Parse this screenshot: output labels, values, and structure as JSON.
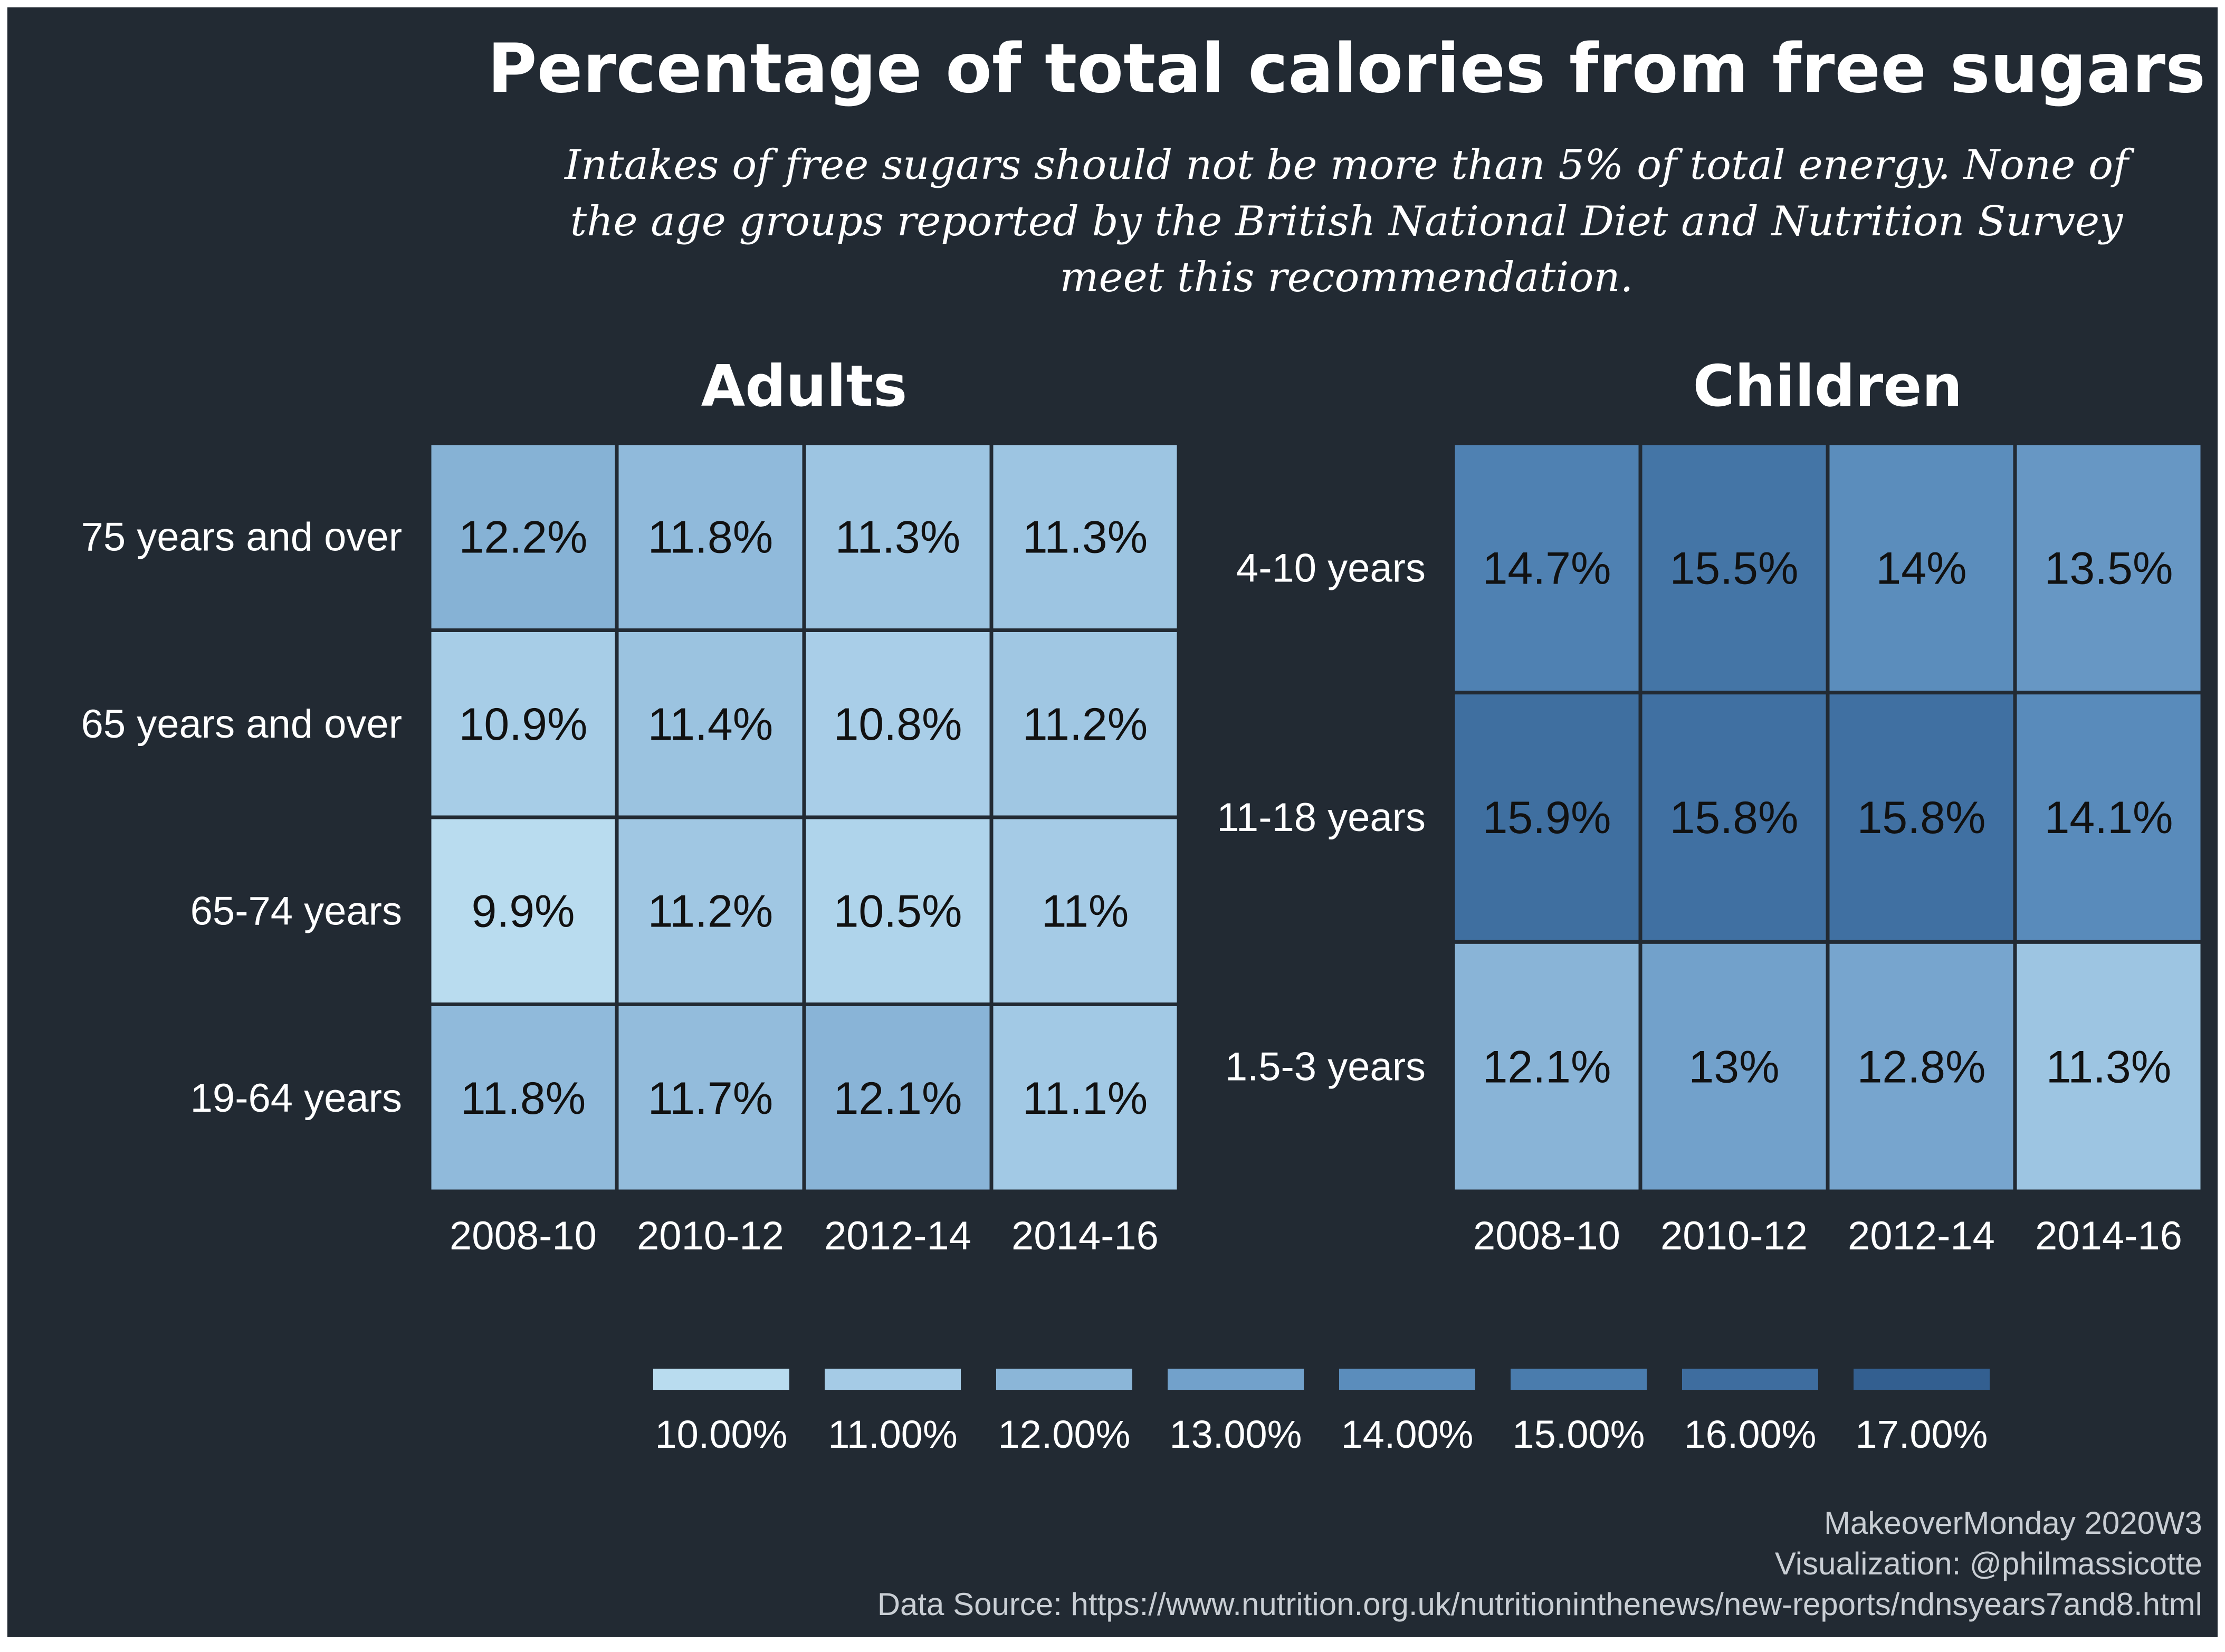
{
  "title": "Percentage of total calories from free sugars",
  "subtitle": [
    "Intakes of free sugars should not be more than 5% of total energy. None of",
    "the age groups reported by the British National Diet and Nutrition Survey",
    "meet this recommendation."
  ],
  "chart_data": [
    {
      "type": "heatmap",
      "title": "Adults",
      "x": [
        "2008-10",
        "2010-12",
        "2012-14",
        "2014-16"
      ],
      "y": [
        "75 years and over",
        "65 years and over",
        "65-74 years",
        "19-64 years"
      ],
      "values": [
        [
          12.2,
          11.8,
          11.3,
          11.3
        ],
        [
          10.9,
          11.4,
          10.8,
          11.2
        ],
        [
          9.9,
          11.2,
          10.5,
          11.0
        ],
        [
          11.8,
          11.7,
          12.1,
          11.1
        ]
      ],
      "labels": [
        [
          "12.2%",
          "11.8%",
          "11.3%",
          "11.3%"
        ],
        [
          "10.9%",
          "11.4%",
          "10.8%",
          "11.2%"
        ],
        [
          "9.9%",
          "11.2%",
          "10.5%",
          "11%"
        ],
        [
          "11.8%",
          "11.7%",
          "12.1%",
          "11.1%"
        ]
      ]
    },
    {
      "type": "heatmap",
      "title": "Children",
      "x": [
        "2008-10",
        "2010-12",
        "2012-14",
        "2014-16"
      ],
      "y": [
        "4-10 years",
        "11-18 years",
        "1.5-3 years"
      ],
      "values": [
        [
          14.7,
          15.5,
          14.0,
          13.5
        ],
        [
          15.9,
          15.8,
          15.8,
          14.1
        ],
        [
          12.1,
          13.0,
          12.8,
          11.3
        ]
      ],
      "labels": [
        [
          "14.7%",
          "15.5%",
          "14%",
          "13.5%"
        ],
        [
          "15.9%",
          "15.8%",
          "15.8%",
          "14.1%"
        ],
        [
          "12.1%",
          "13%",
          "12.8%",
          "11.3%"
        ]
      ]
    }
  ],
  "legend": {
    "placement": "bottom",
    "items": [
      {
        "label": "10.00%",
        "value": 10,
        "color": "#b9dcef"
      },
      {
        "label": "11.00%",
        "value": 11,
        "color": "#a5cbe6"
      },
      {
        "label": "12.00%",
        "value": 12,
        "color": "#8bb6d8"
      },
      {
        "label": "13.00%",
        "value": 13,
        "color": "#72a1cb"
      },
      {
        "label": "14.00%",
        "value": 14,
        "color": "#5b8dbc"
      },
      {
        "label": "15.00%",
        "value": 15,
        "color": "#4a7cad"
      },
      {
        "label": "16.00%",
        "value": 16,
        "color": "#3e6d9f"
      },
      {
        "label": "17.00%",
        "value": 17,
        "color": "#335f90"
      }
    ]
  },
  "colors": {
    "background": "#222a33",
    "grid_line": "#222a33",
    "scale_low": "#b9dcef",
    "scale_high": "#2f5a8c"
  },
  "caption": [
    "MakeoverMonday 2020W3",
    "Visualization: @philmassicotte",
    "Data Source: https://www.nutrition.org.uk/nutritioninthenews/new-reports/ndnsyears7and8.html"
  ]
}
